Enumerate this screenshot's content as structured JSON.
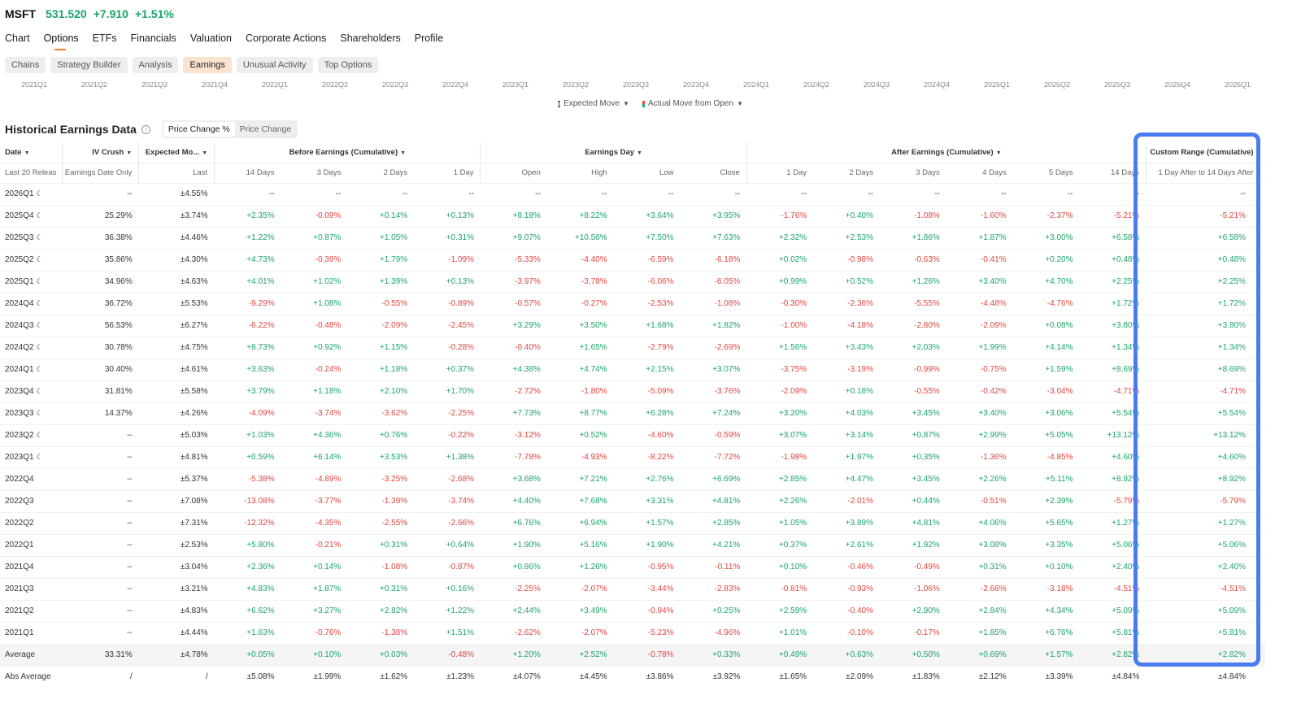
{
  "ticker": {
    "symbol": "MSFT",
    "price": "531.520",
    "change": "+7.910",
    "change_pct": "+1.51%"
  },
  "nav": [
    {
      "label": "Chart"
    },
    {
      "label": "Options",
      "active": true
    },
    {
      "label": "ETFs"
    },
    {
      "label": "Financials"
    },
    {
      "label": "Valuation"
    },
    {
      "label": "Corporate Actions"
    },
    {
      "label": "Shareholders"
    },
    {
      "label": "Profile"
    }
  ],
  "subtabs": [
    {
      "label": "Chains"
    },
    {
      "label": "Strategy Builder"
    },
    {
      "label": "Analysis"
    },
    {
      "label": "Earnings",
      "active": true
    },
    {
      "label": "Unusual Activity"
    },
    {
      "label": "Top Options"
    }
  ],
  "axis_quarters": [
    "2021Q1",
    "2021Q2",
    "2021Q3",
    "2021Q4",
    "2022Q1",
    "2022Q2",
    "2022Q3",
    "2022Q4",
    "2023Q1",
    "2023Q2",
    "2023Q3",
    "2023Q4",
    "2024Q1",
    "2024Q2",
    "2024Q3",
    "2024Q4",
    "2025Q1",
    "2025Q2",
    "2025Q3",
    "2025Q4",
    "2026Q1"
  ],
  "legend": {
    "expected_move": "Expected Move",
    "actual_move": "Actual Move from Open"
  },
  "section": {
    "title": "Historical Earnings Data",
    "toggle_pct": "Price Change %",
    "toggle_abs": "Price Change"
  },
  "groups": {
    "date": "Date",
    "iv_crush": "IV Crush",
    "expected_move": "Expected Mo...",
    "before": "Before Earnings (Cumulative)",
    "earnings_day": "Earnings Day",
    "after": "After Earnings (Cumulative)",
    "custom": "Custom Range (Cumulative)"
  },
  "subheaders": [
    "Last 20 Releas",
    "Earnings Date Only",
    "Last",
    "14 Days",
    "3 Days",
    "2 Days",
    "1 Day",
    "Open",
    "High",
    "Low",
    "Close",
    "1 Day",
    "2 Days",
    "3 Days",
    "4 Days",
    "5 Days",
    "14 Days",
    "1 Day After to 14 Days After"
  ],
  "rows": [
    [
      "2026Q1",
      "--",
      "±4.55%",
      "--",
      "--",
      "--",
      "--",
      "--",
      "--",
      "--",
      "--",
      "--",
      "--",
      "--",
      "--",
      "--",
      "--",
      "--"
    ],
    [
      "2025Q4",
      "25.29%",
      "±3.74%",
      "+2.35%",
      "-0.09%",
      "+0.14%",
      "+0.13%",
      "+8.18%",
      "+8.22%",
      "+3.64%",
      "+3.95%",
      "-1.76%",
      "+0.40%",
      "-1.08%",
      "-1.60%",
      "-2.37%",
      "-5.21%",
      "-5.21%"
    ],
    [
      "2025Q3",
      "36.38%",
      "±4.46%",
      "+1.22%",
      "+0.87%",
      "+1.05%",
      "+0.31%",
      "+9.07%",
      "+10.56%",
      "+7.50%",
      "+7.63%",
      "+2.32%",
      "+2.53%",
      "+1.86%",
      "+1.87%",
      "+3.00%",
      "+6.58%",
      "+6.58%"
    ],
    [
      "2025Q2",
      "35.86%",
      "±4.30%",
      "+4.73%",
      "-0.39%",
      "+1.79%",
      "-1.09%",
      "-5.33%",
      "-4.40%",
      "-6.59%",
      "-6.18%",
      "+0.02%",
      "-0.98%",
      "-0.63%",
      "-0.41%",
      "+0.20%",
      "+0.48%",
      "+0.48%"
    ],
    [
      "2025Q1",
      "34.96%",
      "±4.63%",
      "+4.01%",
      "+1.02%",
      "+1.39%",
      "+0.13%",
      "-3.97%",
      "-3.78%",
      "-6.06%",
      "-6.05%",
      "+0.99%",
      "+0.52%",
      "+1.26%",
      "+3.40%",
      "+4.70%",
      "+2.25%",
      "+2.25%"
    ],
    [
      "2024Q4",
      "36.72%",
      "±5.53%",
      "-9.29%",
      "+1.08%",
      "-0.55%",
      "-0.89%",
      "-0.57%",
      "-0.27%",
      "-2.53%",
      "-1.08%",
      "-0.30%",
      "-2.36%",
      "-5.55%",
      "-4.48%",
      "-4.76%",
      "+1.72%",
      "+1.72%"
    ],
    [
      "2024Q3",
      "56.53%",
      "±6.27%",
      "-6.22%",
      "-0.48%",
      "-2.09%",
      "-2.45%",
      "+3.29%",
      "+3.50%",
      "+1.68%",
      "+1.82%",
      "-1.00%",
      "-4.18%",
      "-2.80%",
      "-2.09%",
      "+0.08%",
      "+3.80%",
      "+3.80%"
    ],
    [
      "2024Q2",
      "30.78%",
      "±4.75%",
      "+8.73%",
      "+0.92%",
      "+1.15%",
      "-0.28%",
      "-0.40%",
      "+1.65%",
      "-2.79%",
      "-2.69%",
      "+1.56%",
      "+3.43%",
      "+2.03%",
      "+1.99%",
      "+4.14%",
      "+1.34%",
      "+1.34%"
    ],
    [
      "2024Q1",
      "30.40%",
      "±4.61%",
      "+3.63%",
      "-0.24%",
      "+1.18%",
      "+0.37%",
      "+4.38%",
      "+4.74%",
      "+2.15%",
      "+3.07%",
      "-3.75%",
      "-3.19%",
      "-0.99%",
      "-0.75%",
      "+1.59%",
      "+8.69%",
      "+8.69%"
    ],
    [
      "2023Q4",
      "31.81%",
      "±5.58%",
      "+3.79%",
      "+1.18%",
      "+2.10%",
      "+1.70%",
      "-2.72%",
      "-1.80%",
      "-5.09%",
      "-3.76%",
      "-2.09%",
      "+0.18%",
      "-0.55%",
      "-0.42%",
      "-3.04%",
      "-4.71%",
      "-4.71%"
    ],
    [
      "2023Q3",
      "14.37%",
      "±4.26%",
      "-4.09%",
      "-3.74%",
      "-3.62%",
      "-2.25%",
      "+7.73%",
      "+8.77%",
      "+6.28%",
      "+7.24%",
      "+3.20%",
      "+4.03%",
      "+3.45%",
      "+3.40%",
      "+3.06%",
      "+5.54%",
      "+5.54%"
    ],
    [
      "2023Q2",
      "--",
      "±5.03%",
      "+1.03%",
      "+4.36%",
      "+0.76%",
      "-0.22%",
      "-3.12%",
      "+0.52%",
      "-4.60%",
      "-0.59%",
      "+3.07%",
      "+3.14%",
      "+0.87%",
      "+2.99%",
      "+5.05%",
      "+13.12%",
      "+13.12%"
    ],
    [
      "2023Q1",
      "--",
      "±4.81%",
      "+0.59%",
      "+6.14%",
      "+3.53%",
      "+1.38%",
      "-7.78%",
      "-4.93%",
      "-8.22%",
      "-7.72%",
      "-1.98%",
      "+1.97%",
      "+0.35%",
      "-1.36%",
      "-4.85%",
      "+4.60%",
      "+4.60%"
    ],
    [
      "2022Q4",
      "--",
      "±5.37%",
      "-5.38%",
      "-4.89%",
      "-3.25%",
      "-2.68%",
      "+3.68%",
      "+7.21%",
      "+2.76%",
      "+6.69%",
      "+2.85%",
      "+4.47%",
      "+3.45%",
      "+2.26%",
      "+5.11%",
      "+8.92%",
      "+8.92%"
    ],
    [
      "2022Q3",
      "--",
      "±7.08%",
      "-13.08%",
      "-3.77%",
      "-1.39%",
      "-3.74%",
      "+4.40%",
      "+7.68%",
      "+3.31%",
      "+4.81%",
      "+2.26%",
      "-2.01%",
      "+0.44%",
      "-0.51%",
      "+2.39%",
      "-5.79%",
      "-5.79%"
    ],
    [
      "2022Q2",
      "--",
      "±7.31%",
      "-12.32%",
      "-4.35%",
      "-2.55%",
      "-2.66%",
      "+6.76%",
      "+6.94%",
      "+1.57%",
      "+2.85%",
      "+1.05%",
      "+3.89%",
      "+4.81%",
      "+4.06%",
      "+5.65%",
      "+1.27%",
      "+1.27%"
    ],
    [
      "2022Q1",
      "--",
      "±2.53%",
      "+5.80%",
      "-0.21%",
      "+0.31%",
      "+0.64%",
      "+1.90%",
      "+5.16%",
      "+1.90%",
      "+4.21%",
      "+0.37%",
      "+2.61%",
      "+1.92%",
      "+3.08%",
      "+3.35%",
      "+5.06%",
      "+5.06%"
    ],
    [
      "2021Q4",
      "--",
      "±3.04%",
      "+2.36%",
      "+0.14%",
      "-1.08%",
      "-0.87%",
      "+0.86%",
      "+1.26%",
      "-0.95%",
      "-0.11%",
      "+0.10%",
      "-0.46%",
      "-0.49%",
      "+0.31%",
      "+0.10%",
      "+2.40%",
      "+2.40%"
    ],
    [
      "2021Q3",
      "--",
      "±3.21%",
      "+4.83%",
      "+1.87%",
      "+0.31%",
      "+0.16%",
      "-2.25%",
      "-2.07%",
      "-3.44%",
      "-2.83%",
      "-0.81%",
      "-0.93%",
      "-1.06%",
      "-2.66%",
      "-3.18%",
      "-4.51%",
      "-4.51%"
    ],
    [
      "2021Q2",
      "--",
      "±4.83%",
      "+6.62%",
      "+3.27%",
      "+2.82%",
      "+1.22%",
      "+2.44%",
      "+3.49%",
      "-0.94%",
      "+0.25%",
      "+2.59%",
      "-0.40%",
      "+2.90%",
      "+2.84%",
      "+4.34%",
      "+5.09%",
      "+5.09%"
    ],
    [
      "2021Q1",
      "--",
      "±4.44%",
      "+1.63%",
      "-0.76%",
      "-1.38%",
      "+1.51%",
      "-2.62%",
      "-2.07%",
      "-5.23%",
      "-4.96%",
      "+1.01%",
      "-0.10%",
      "-0.17%",
      "+1.85%",
      "+6.76%",
      "+5.81%",
      "+5.81%"
    ]
  ],
  "summary": [
    [
      "Average",
      "33.31%",
      "±4.78%",
      "+0.05%",
      "+0.10%",
      "+0.03%",
      "-0.48%",
      "+1.20%",
      "+2.52%",
      "-0.78%",
      "+0.33%",
      "+0.49%",
      "+0.63%",
      "+0.50%",
      "+0.69%",
      "+1.57%",
      "+2.82%",
      "+2.82%"
    ],
    [
      "Abs Average",
      "/",
      "/",
      "±5.08%",
      "±1.99%",
      "±1.62%",
      "±1.23%",
      "±4.07%",
      "±4.45%",
      "±3.86%",
      "±3.92%",
      "±1.65%",
      "±2.09%",
      "±1.83%",
      "±2.12%",
      "±3.39%",
      "±4.84%",
      "±4.84%"
    ]
  ],
  "colors": {
    "positive": "#1ba56a",
    "negative": "#e2453f",
    "accent": "#f07a2a",
    "highlight": "#4a7bf0"
  }
}
